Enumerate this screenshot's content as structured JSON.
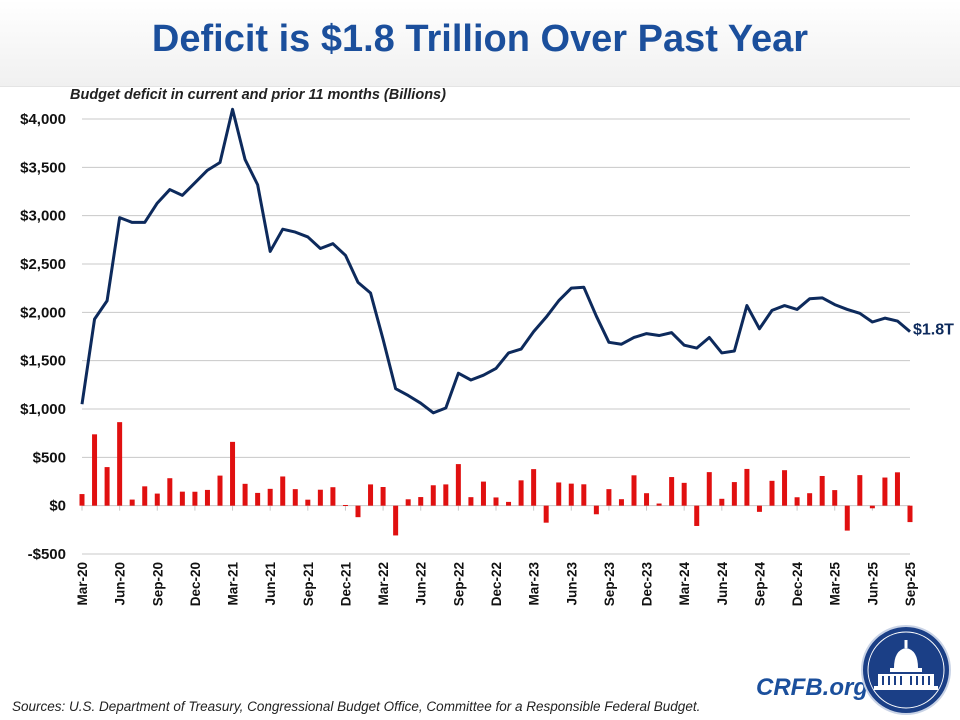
{
  "title": "Deficit is $1.8 Trillion Over Past Year",
  "source": "Sources: U.S. Department of Treasury, Congressional Budget Office, Committee for a Responsible Federal Budget.",
  "brand": "CRFB.org",
  "colors": {
    "title": "#1b4f9c",
    "line": "#0d2a5c",
    "bars": "#e01010",
    "grid": "#c8c8c8"
  },
  "chart_data": {
    "type": "line+bar",
    "subtitle": "Budget deficit in current and prior 11 months (Billions)",
    "ylim": [
      -500,
      4000
    ],
    "yticks": [
      -500,
      0,
      500,
      1000,
      1500,
      2000,
      2500,
      3000,
      3500,
      4000
    ],
    "ytick_labels": [
      "-$500",
      "$0",
      "$500",
      "$1,000",
      "$1,500",
      "$2,000",
      "$2,500",
      "$3,000",
      "$3,500",
      "$4,000"
    ],
    "grid": true,
    "start_month": "Mar-20",
    "xtick_labels": [
      "Mar-20",
      "Jun-20",
      "Sep-20",
      "Dec-20",
      "Mar-21",
      "Jun-21",
      "Sep-21",
      "Dec-21",
      "Mar-22",
      "Jun-22",
      "Sep-22",
      "Dec-22",
      "Mar-23",
      "Jun-23",
      "Sep-23",
      "Dec-23",
      "Mar-24",
      "Jun-24",
      "Sep-24",
      "Dec-24",
      "Mar-25",
      "Jun-25",
      "Sep-25"
    ],
    "end_label": "$1.8T",
    "rolling_12m_deficit": [
      1050,
      1930,
      2120,
      2980,
      2930,
      2930,
      3130,
      3270,
      3210,
      3340,
      3470,
      3550,
      4100,
      3580,
      3320,
      2630,
      2860,
      2830,
      2780,
      2660,
      2710,
      2590,
      2310,
      2200,
      1720,
      1210,
      1140,
      1060,
      960,
      1010,
      1370,
      1300,
      1350,
      1420,
      1580,
      1620,
      1800,
      1950,
      2120,
      2250,
      2260,
      1960,
      1690,
      1670,
      1740,
      1780,
      1760,
      1790,
      1660,
      1630,
      1740,
      1580,
      1600,
      2070,
      1830,
      2020,
      2070,
      2030,
      2140,
      2150,
      2080,
      2030,
      1990,
      1900,
      1940,
      1910,
      1800
    ],
    "monthly_deficit": [
      120,
      738,
      399,
      864,
      63,
      200,
      125,
      284,
      145,
      144,
      163,
      311,
      660,
      226,
      132,
      174,
      302,
      171,
      62,
      165,
      191,
      7,
      -119,
      220,
      193,
      -308,
      66,
      89,
      211,
      220,
      430,
      88,
      249,
      85,
      39,
      262,
      378,
      -176,
      240,
      228,
      221,
      -89,
      171,
      67,
      314,
      129,
      22,
      296,
      236,
      -210,
      347,
      71,
      244,
      380,
      -64,
      257,
      367,
      87,
      129,
      307,
      161,
      -258,
      316,
      -27,
      291,
      345,
      -170
    ]
  }
}
